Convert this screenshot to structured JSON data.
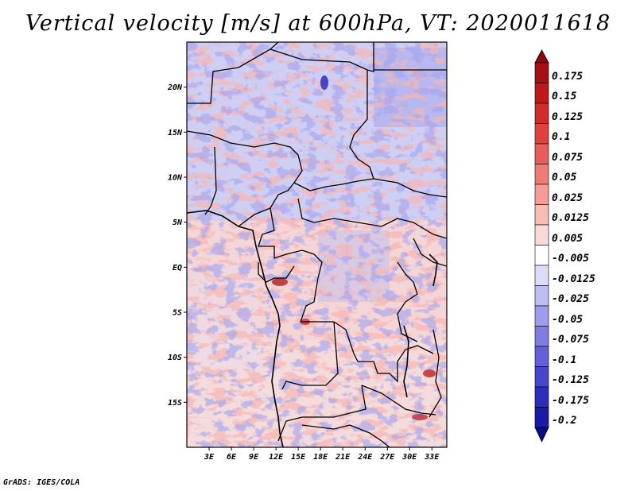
{
  "title": "Vertical velocity [m/s] at 600hPa, VT: 2020011618",
  "credit": "GrADS: IGES/COLA",
  "map": {
    "lon_range": [
      0,
      35
    ],
    "lat_range": [
      -20,
      25
    ],
    "lat_ticks": [
      {
        "value": 20,
        "label": "20N"
      },
      {
        "value": 15,
        "label": "15N"
      },
      {
        "value": 10,
        "label": "10N"
      },
      {
        "value": 5,
        "label": "5N"
      },
      {
        "value": 0,
        "label": "EQ"
      },
      {
        "value": -5,
        "label": "5S"
      },
      {
        "value": -10,
        "label": "10S"
      },
      {
        "value": -15,
        "label": "15S"
      }
    ],
    "lon_ticks": [
      {
        "value": 3,
        "label": "3E"
      },
      {
        "value": 6,
        "label": "6E"
      },
      {
        "value": 9,
        "label": "9E"
      },
      {
        "value": 12,
        "label": "12E"
      },
      {
        "value": 15,
        "label": "15E"
      },
      {
        "value": 18,
        "label": "18E"
      },
      {
        "value": 21,
        "label": "21E"
      },
      {
        "value": 24,
        "label": "24E"
      },
      {
        "value": 27,
        "label": "27E"
      },
      {
        "value": 30,
        "label": "30E"
      },
      {
        "value": 33,
        "label": "33E"
      }
    ]
  },
  "colorbar": {
    "levels": [
      {
        "label": "0.175",
        "color": "#a50f15"
      },
      {
        "label": "0.15",
        "color": "#c0171d"
      },
      {
        "label": "0.125",
        "color": "#d42a2a"
      },
      {
        "label": "0.1",
        "color": "#e0413f"
      },
      {
        "label": "0.075",
        "color": "#e85d58"
      },
      {
        "label": "0.05",
        "color": "#ef7b76"
      },
      {
        "label": "0.025",
        "color": "#f49c97"
      },
      {
        "label": "0.0125",
        "color": "#f8bcb7"
      },
      {
        "label": "0.005",
        "color": "#fbd9d6"
      },
      {
        "label": "-0.005",
        "color": "#ffffff"
      },
      {
        "label": "-0.0125",
        "color": "#dcdcf8"
      },
      {
        "label": "-0.025",
        "color": "#bdbdf2"
      },
      {
        "label": "-0.05",
        "color": "#9d9deb"
      },
      {
        "label": "-0.075",
        "color": "#7e7ee2"
      },
      {
        "label": "-0.1",
        "color": "#6161d8"
      },
      {
        "label": "-0.125",
        "color": "#4646cc"
      },
      {
        "label": "-0.175",
        "color": "#2e2ebd"
      },
      {
        "label": "-0.2",
        "color": "#1a1aa6"
      }
    ],
    "lower_extend_color": "#0b0b8a",
    "upper_extend_color": "#8b0a10"
  }
}
